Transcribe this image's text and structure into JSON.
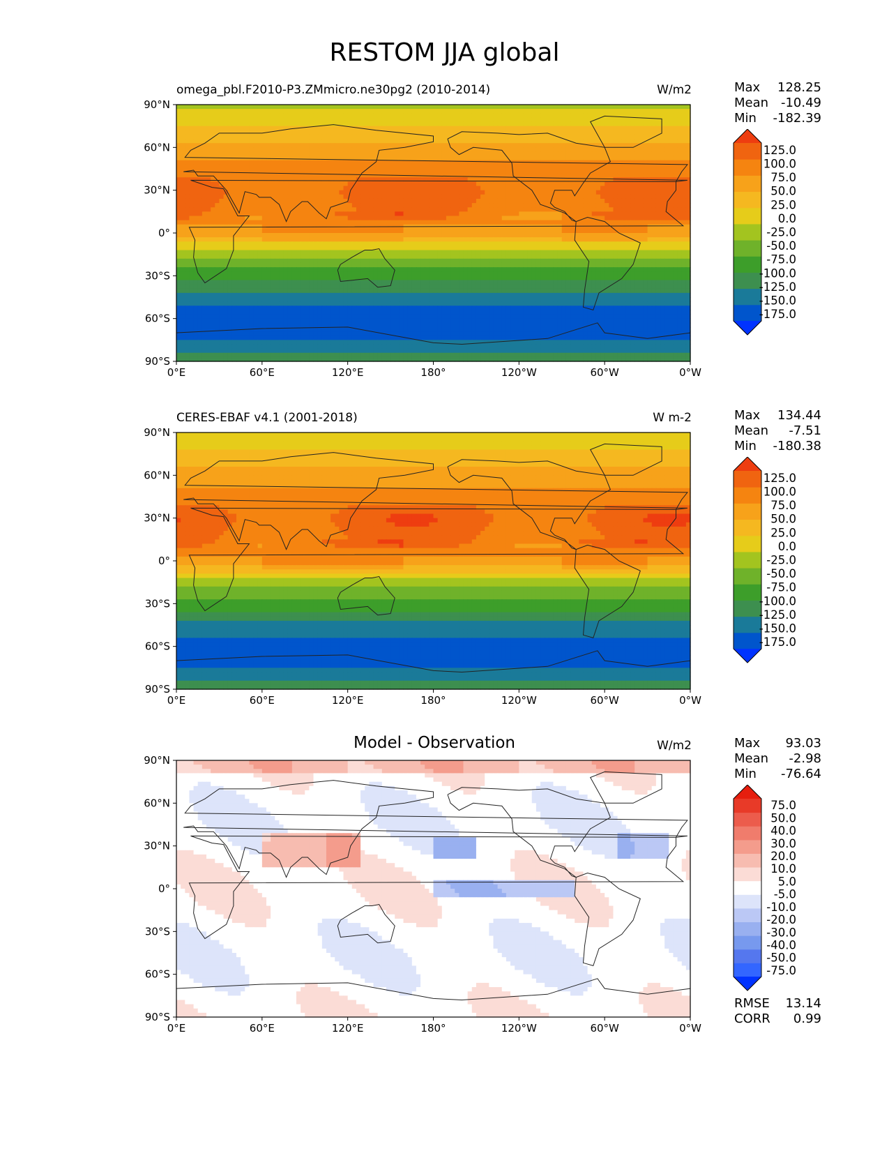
{
  "title": "RESTOM JJA global",
  "x_ticks": [
    "0°E",
    "60°E",
    "120°E",
    "180°",
    "120°W",
    "60°W",
    "0°W"
  ],
  "y_ticks": [
    "90°N",
    "60°N",
    "30°N",
    "0°",
    "30°S",
    "60°S",
    "90°S"
  ],
  "colors": {
    "full_field": [
      "#0033ff",
      "#0055cc",
      "#1a7a99",
      "#3d8f4f",
      "#3d9e2a",
      "#6fb22a",
      "#a3c41f",
      "#e6cc1a",
      "#f5b820",
      "#f7a21a",
      "#f58410",
      "#f06410",
      "#ee3d10"
    ],
    "difference": [
      "#0033ff",
      "#3366ff",
      "#5577ee",
      "#7799ee",
      "#99b0f0",
      "#bbc8f5",
      "#dde4fa",
      "#ffffff",
      "#fbdcd6",
      "#f7bcb0",
      "#f49c8c",
      "#f07c6c",
      "#ec5c4c",
      "#e83a28",
      "#e61e0e"
    ],
    "coastline": "#222222"
  },
  "panels": [
    {
      "id": "model",
      "title": "omega_pbl.F2010-P3.ZMmicro.ne30pg2 (2010-2014)",
      "units": "W/m2",
      "stats": {
        "max_label": "Max",
        "max": "128.25",
        "mean_label": "Mean",
        "mean": "-10.49",
        "min_label": "Min",
        "min": "-182.39"
      },
      "colorbar": [
        "125.0",
        "100.0",
        "75.0",
        "50.0",
        "25.0",
        "0.0",
        "-25.0",
        "-50.0",
        "-75.0",
        "-100.0",
        "-125.0",
        "-150.0",
        "-175.0"
      ]
    },
    {
      "id": "obs",
      "title": "CERES-EBAF v4.1 (2001-2018)",
      "units": "W m-2",
      "stats": {
        "max_label": "Max",
        "max": "134.44",
        "mean_label": "Mean",
        "mean": "-7.51",
        "min_label": "Min",
        "min": "-180.38"
      },
      "colorbar": [
        "125.0",
        "100.0",
        "75.0",
        "50.0",
        "25.0",
        "0.0",
        "-25.0",
        "-50.0",
        "-75.0",
        "-100.0",
        "-125.0",
        "-150.0",
        "-175.0"
      ]
    },
    {
      "id": "diff",
      "title": "Model - Observation",
      "units": "W/m2",
      "stats": {
        "max_label": "Max",
        "max": "93.03",
        "mean_label": "Mean",
        "mean": "-2.98",
        "min_label": "Min",
        "min": "-76.64"
      },
      "colorbar": [
        "75.0",
        "50.0",
        "40.0",
        "30.0",
        "20.0",
        "10.0",
        "5.0",
        "-5.0",
        "-10.0",
        "-20.0",
        "-30.0",
        "-40.0",
        "-50.0",
        "-75.0"
      ],
      "extra_stats": {
        "rmse_label": "RMSE",
        "rmse": "13.14",
        "corr_label": "CORR",
        "corr": "0.99"
      }
    }
  ],
  "chart_data": [
    {
      "type": "heatmap",
      "title": "omega_pbl.F2010-P3.ZMmicro.ne30pg2 (2010-2014)",
      "units": "W/m2",
      "xlim": [
        0,
        360
      ],
      "ylim": [
        -90,
        90
      ],
      "levels": [
        -175,
        -150,
        -125,
        -100,
        -75,
        -50,
        -25,
        0,
        25,
        50,
        75,
        100,
        125
      ],
      "zonal_profile": {
        "lat": [
          90,
          75,
          60,
          45,
          30,
          15,
          0,
          -15,
          -30,
          -45,
          -60,
          -75,
          -90
        ],
        "value": [
          -30,
          0,
          30,
          60,
          80,
          70,
          40,
          -40,
          -90,
          -135,
          -170,
          -150,
          -110
        ]
      },
      "max": 128.25,
      "mean": -10.49,
      "min": -182.39
    },
    {
      "type": "heatmap",
      "title": "CERES-EBAF v4.1 (2001-2018)",
      "units": "W m-2",
      "xlim": [
        0,
        360
      ],
      "ylim": [
        -90,
        90
      ],
      "levels": [
        -175,
        -150,
        -125,
        -100,
        -75,
        -50,
        -25,
        0,
        25,
        50,
        75,
        100,
        125
      ],
      "zonal_profile": {
        "lat": [
          90,
          75,
          60,
          45,
          30,
          15,
          0,
          -15,
          -30,
          -45,
          -60,
          -75,
          -90
        ],
        "value": [
          -25,
          5,
          35,
          65,
          85,
          75,
          45,
          -35,
          -85,
          -130,
          -165,
          -150,
          -110
        ]
      },
      "max": 134.44,
      "mean": -7.51,
      "min": -180.38
    },
    {
      "type": "heatmap",
      "title": "Model - Observation",
      "units": "W/m2",
      "xlim": [
        0,
        360
      ],
      "ylim": [
        -90,
        90
      ],
      "levels": [
        -75,
        -50,
        -40,
        -30,
        -20,
        -10,
        -5,
        5,
        10,
        20,
        30,
        40,
        50,
        75
      ],
      "max": 93.03,
      "mean": -2.98,
      "min": -76.64,
      "rmse": 13.14,
      "corr": 0.99
    }
  ]
}
